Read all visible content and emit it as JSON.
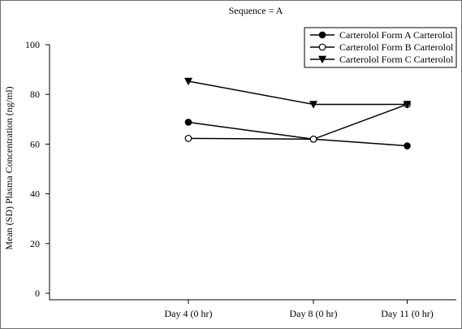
{
  "chart_data": {
    "type": "line",
    "title": "Sequence = A",
    "xlabel": "",
    "ylabel": "Mean (SD) Plasma Concentration (ng/ml)",
    "categories": [
      "Day 4 (0 hr)",
      "Day 8 (0 hr)",
      "Day 11 (0 hr)"
    ],
    "x_days": [
      4,
      8,
      11
    ],
    "ylim": [
      0,
      100
    ],
    "yticks": [
      0,
      20,
      40,
      60,
      80,
      100
    ],
    "grid": false,
    "legend_position": "top-right",
    "series": [
      {
        "name": "Carterolol Form A  Carterolol",
        "marker": "filled-circle",
        "values": [
          68.8,
          62.0,
          59.3
        ]
      },
      {
        "name": "Carterolol Form B  Carterolol",
        "marker": "open-circle",
        "values": [
          62.3,
          62.0,
          76.0
        ]
      },
      {
        "name": "Carterolol Form C  Carterolol",
        "marker": "filled-triangle-down",
        "values": [
          85.3,
          76.0,
          76.0
        ]
      }
    ]
  }
}
